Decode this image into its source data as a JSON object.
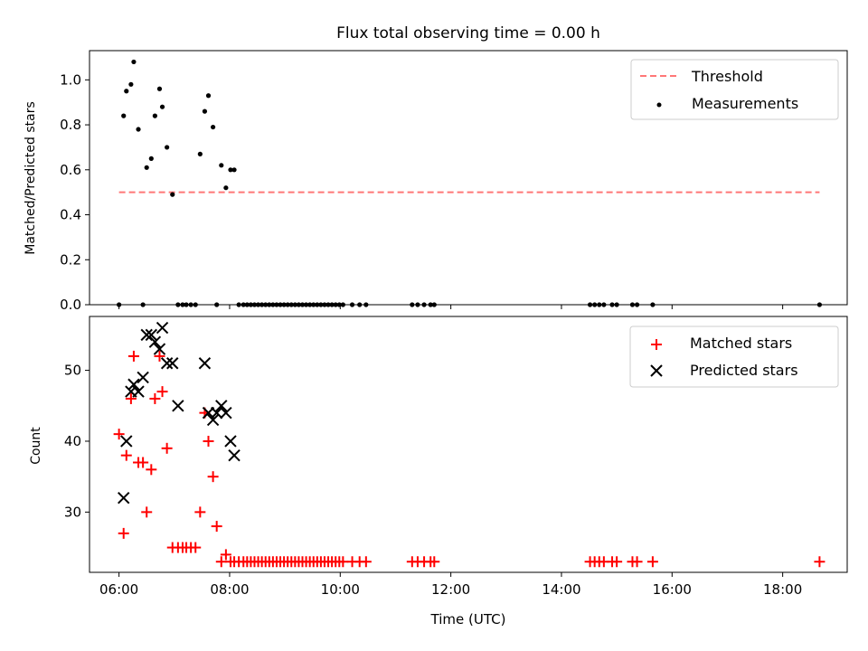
{
  "chart_data": [
    {
      "type": "scatter",
      "title": "Flux total observing time = 0.00 h",
      "xlabel": "",
      "ylabel": "Matched/Predicted stars",
      "ylim": [
        0,
        1.13
      ],
      "yticks": [
        0.0,
        0.2,
        0.4,
        0.6,
        0.8,
        1.0
      ],
      "legend_position": "top-right",
      "series": [
        {
          "name": "Threshold",
          "kind": "line",
          "style": "dashed",
          "color": "#ff7777",
          "x": [
            "06:00",
            "18:40"
          ],
          "y": [
            0.5,
            0.5
          ]
        },
        {
          "name": "Measurements",
          "kind": "scatter",
          "marker": "dot",
          "color": "#000000",
          "x": [
            "06:00",
            "06:05",
            "06:08",
            "06:13",
            "06:16",
            "06:21",
            "06:26",
            "06:30",
            "06:35",
            "06:39",
            "06:44",
            "06:47",
            "06:52",
            "06:58",
            "07:04",
            "07:09",
            "07:13",
            "07:18",
            "07:23",
            "07:28",
            "07:33",
            "07:37",
            "07:42",
            "07:46",
            "07:51",
            "07:56",
            "08:01",
            "08:05",
            "08:10",
            "08:15",
            "08:19",
            "08:23",
            "08:27",
            "08:31",
            "08:35",
            "08:39",
            "08:43",
            "08:47",
            "08:51",
            "08:55",
            "08:59",
            "09:03",
            "09:07",
            "09:11",
            "09:15",
            "09:19",
            "09:23",
            "09:27",
            "09:31",
            "09:35",
            "09:39",
            "09:43",
            "09:47",
            "09:51",
            "09:55",
            "09:59",
            "10:03",
            "10:13",
            "10:21",
            "10:28",
            "11:18",
            "11:24",
            "11:31",
            "11:38",
            "11:42",
            "14:31",
            "14:36",
            "14:41",
            "14:46",
            "14:55",
            "15:00",
            "15:17",
            "15:22",
            "15:39",
            "18:40"
          ],
          "y": [
            0,
            0.84,
            0.95,
            0.98,
            1.08,
            0.78,
            0,
            0.61,
            0.65,
            0.84,
            0.96,
            0.88,
            0.7,
            0.49,
            0,
            0,
            0,
            0,
            0,
            0.67,
            0.86,
            0.93,
            0.79,
            0,
            0.62,
            0.52,
            0.6,
            0.6,
            0,
            0,
            0,
            0,
            0,
            0,
            0,
            0,
            0,
            0,
            0,
            0,
            0,
            0,
            0,
            0,
            0,
            0,
            0,
            0,
            0,
            0,
            0,
            0,
            0,
            0,
            0,
            0,
            0,
            0,
            0,
            0,
            0,
            0,
            0,
            0,
            0,
            0,
            0,
            0,
            0,
            0,
            0,
            0,
            0,
            0,
            0
          ]
        }
      ]
    },
    {
      "type": "scatter",
      "title": "",
      "xlabel": "Time (UTC)",
      "ylabel": "Count",
      "xlim": [
        "05:28",
        "19:10"
      ],
      "ylim": [
        21.5,
        57.6
      ],
      "yticks": [
        30,
        40,
        50
      ],
      "xticks": [
        "06:00",
        "08:00",
        "10:00",
        "12:00",
        "14:00",
        "16:00",
        "18:00"
      ],
      "legend_position": "top-right",
      "series": [
        {
          "name": "Matched stars",
          "marker": "plus",
          "color": "#ff0000",
          "x": [
            "06:00",
            "06:05",
            "06:08",
            "06:13",
            "06:16",
            "06:21",
            "06:26",
            "06:30",
            "06:35",
            "06:39",
            "06:44",
            "06:47",
            "06:52",
            "06:58",
            "07:04",
            "07:09",
            "07:13",
            "07:18",
            "07:23",
            "07:28",
            "07:33",
            "07:37",
            "07:42",
            "07:46",
            "07:51",
            "07:56",
            "08:01",
            "08:05",
            "08:10",
            "08:15",
            "08:19",
            "08:23",
            "08:27",
            "08:31",
            "08:35",
            "08:39",
            "08:43",
            "08:47",
            "08:51",
            "08:55",
            "08:59",
            "09:03",
            "09:07",
            "09:11",
            "09:15",
            "09:19",
            "09:23",
            "09:27",
            "09:31",
            "09:35",
            "09:39",
            "09:43",
            "09:47",
            "09:51",
            "09:55",
            "09:59",
            "10:03",
            "10:13",
            "10:21",
            "10:28",
            "11:18",
            "11:24",
            "11:31",
            "11:38",
            "11:42",
            "14:31",
            "14:36",
            "14:41",
            "14:46",
            "14:55",
            "15:00",
            "15:17",
            "15:22",
            "15:39",
            "18:40"
          ],
          "y": [
            41,
            27,
            38,
            46,
            52,
            37,
            37,
            30,
            36,
            46,
            52,
            47,
            39,
            25,
            25,
            25,
            25,
            25,
            25,
            30,
            44,
            40,
            35,
            28,
            23,
            24,
            23,
            23,
            23,
            23,
            23,
            23,
            23,
            23,
            23,
            23,
            23,
            23,
            23,
            23,
            23,
            23,
            23,
            23,
            23,
            23,
            23,
            23,
            23,
            23,
            23,
            23,
            23,
            23,
            23,
            23,
            23,
            23,
            23,
            23,
            23,
            23,
            23,
            23,
            23,
            23,
            23,
            23,
            23,
            23,
            23,
            23,
            23,
            23,
            23
          ]
        },
        {
          "name": "Predicted stars",
          "marker": "x",
          "color": "#000000",
          "x": [
            "06:05",
            "06:08",
            "06:13",
            "06:16",
            "06:21",
            "06:26",
            "06:30",
            "06:35",
            "06:39",
            "06:44",
            "06:47",
            "06:52",
            "06:58",
            "07:04",
            "07:33",
            "07:37",
            "07:42",
            "07:46",
            "07:51",
            "07:56",
            "08:01",
            "08:05"
          ],
          "y": [
            32,
            40,
            47,
            48,
            47,
            49,
            55,
            55,
            54,
            53,
            56,
            51,
            51,
            45,
            51,
            44,
            43,
            44,
            45,
            44,
            40,
            38
          ]
        }
      ]
    }
  ]
}
